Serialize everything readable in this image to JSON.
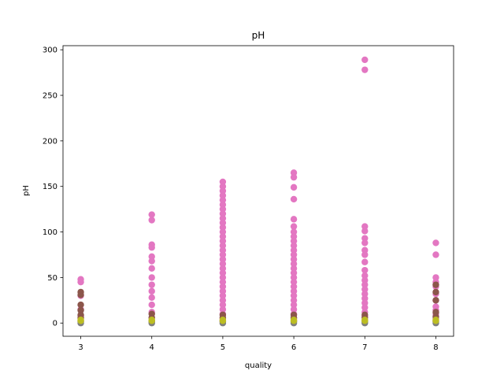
{
  "chart_data": {
    "type": "scatter",
    "title": "pH",
    "xlabel": "quality",
    "ylabel": "pH",
    "xlim": [
      2.75,
      8.25
    ],
    "ylim": [
      -14.5,
      304.5
    ],
    "x_ticks": [
      "3",
      "4",
      "5",
      "6",
      "7",
      "8"
    ],
    "y_ticks": [
      "0",
      "50",
      "100",
      "150",
      "200",
      "250",
      "300"
    ],
    "grid": false,
    "legend": "none",
    "series": [
      {
        "color": "#e377c2",
        "points": [
          [
            3,
            48
          ],
          [
            3,
            45
          ],
          [
            3,
            30
          ],
          [
            3,
            15
          ],
          [
            3,
            8
          ],
          [
            3,
            5
          ],
          [
            3,
            2
          ],
          [
            4,
            119
          ],
          [
            4,
            113
          ],
          [
            4,
            86
          ],
          [
            4,
            83
          ],
          [
            4,
            73
          ],
          [
            4,
            68
          ],
          [
            4,
            60
          ],
          [
            4,
            50
          ],
          [
            4,
            42
          ],
          [
            4,
            35
          ],
          [
            4,
            28
          ],
          [
            4,
            20
          ],
          [
            4,
            12
          ],
          [
            4,
            6
          ],
          [
            4,
            2
          ],
          [
            5,
            155
          ],
          [
            5,
            150
          ],
          [
            5,
            145
          ],
          [
            5,
            140
          ],
          [
            5,
            135
          ],
          [
            5,
            130
          ],
          [
            5,
            125
          ],
          [
            5,
            120
          ],
          [
            5,
            115
          ],
          [
            5,
            110
          ],
          [
            5,
            105
          ],
          [
            5,
            100
          ],
          [
            5,
            95
          ],
          [
            5,
            90
          ],
          [
            5,
            85
          ],
          [
            5,
            80
          ],
          [
            5,
            75
          ],
          [
            5,
            70
          ],
          [
            5,
            65
          ],
          [
            5,
            60
          ],
          [
            5,
            55
          ],
          [
            5,
            50
          ],
          [
            5,
            45
          ],
          [
            5,
            40
          ],
          [
            5,
            35
          ],
          [
            5,
            30
          ],
          [
            5,
            25
          ],
          [
            5,
            20
          ],
          [
            5,
            15
          ],
          [
            5,
            10
          ],
          [
            5,
            5
          ],
          [
            5,
            2
          ],
          [
            6,
            165
          ],
          [
            6,
            160
          ],
          [
            6,
            149
          ],
          [
            6,
            136
          ],
          [
            6,
            114
          ],
          [
            6,
            106
          ],
          [
            6,
            100
          ],
          [
            6,
            95
          ],
          [
            6,
            90
          ],
          [
            6,
            85
          ],
          [
            6,
            80
          ],
          [
            6,
            75
          ],
          [
            6,
            70
          ],
          [
            6,
            65
          ],
          [
            6,
            60
          ],
          [
            6,
            55
          ],
          [
            6,
            50
          ],
          [
            6,
            45
          ],
          [
            6,
            40
          ],
          [
            6,
            35
          ],
          [
            6,
            30
          ],
          [
            6,
            25
          ],
          [
            6,
            20
          ],
          [
            6,
            15
          ],
          [
            6,
            10
          ],
          [
            6,
            5
          ],
          [
            6,
            2
          ],
          [
            7,
            289
          ],
          [
            7,
            278
          ],
          [
            7,
            106
          ],
          [
            7,
            101
          ],
          [
            7,
            93
          ],
          [
            7,
            88
          ],
          [
            7,
            80
          ],
          [
            7,
            75
          ],
          [
            7,
            67
          ],
          [
            7,
            58
          ],
          [
            7,
            52
          ],
          [
            7,
            47
          ],
          [
            7,
            42
          ],
          [
            7,
            37
          ],
          [
            7,
            32
          ],
          [
            7,
            27
          ],
          [
            7,
            22
          ],
          [
            7,
            17
          ],
          [
            7,
            12
          ],
          [
            7,
            7
          ],
          [
            7,
            3
          ],
          [
            8,
            88
          ],
          [
            8,
            75
          ],
          [
            8,
            50
          ],
          [
            8,
            45
          ],
          [
            8,
            40
          ],
          [
            8,
            32
          ],
          [
            8,
            25
          ],
          [
            8,
            18
          ],
          [
            8,
            14
          ],
          [
            8,
            10
          ],
          [
            8,
            5
          ],
          [
            8,
            2
          ]
        ]
      },
      {
        "color": "#8c564b",
        "points": [
          [
            3,
            34
          ],
          [
            3,
            31
          ],
          [
            3,
            20
          ],
          [
            3,
            14
          ],
          [
            3,
            9
          ],
          [
            3,
            6
          ],
          [
            4,
            10
          ],
          [
            4,
            6
          ],
          [
            5,
            9
          ],
          [
            5,
            6
          ],
          [
            6,
            9
          ],
          [
            6,
            6
          ],
          [
            7,
            9
          ],
          [
            7,
            6
          ],
          [
            8,
            42
          ],
          [
            8,
            34
          ],
          [
            8,
            25
          ],
          [
            8,
            12
          ],
          [
            8,
            7
          ]
        ]
      },
      {
        "color": "#7f7f7f",
        "points": [
          [
            3,
            0
          ],
          [
            4,
            0
          ],
          [
            5,
            0
          ],
          [
            6,
            0
          ],
          [
            7,
            0
          ],
          [
            8,
            0
          ],
          [
            3,
            1.5
          ],
          [
            4,
            1.5
          ],
          [
            5,
            1.5
          ],
          [
            6,
            1.5
          ],
          [
            7,
            1.5
          ],
          [
            8,
            1.5
          ]
        ]
      },
      {
        "color": "#bcbd22",
        "points": [
          [
            3,
            3.5
          ],
          [
            3,
            2.5
          ],
          [
            4,
            3.5
          ],
          [
            4,
            2.5
          ],
          [
            5,
            3.5
          ],
          [
            5,
            2.5
          ],
          [
            6,
            3.5
          ],
          [
            6,
            2.5
          ],
          [
            7,
            3.5
          ],
          [
            7,
            2.5
          ],
          [
            8,
            3.5
          ],
          [
            8,
            2.5
          ]
        ]
      }
    ]
  }
}
